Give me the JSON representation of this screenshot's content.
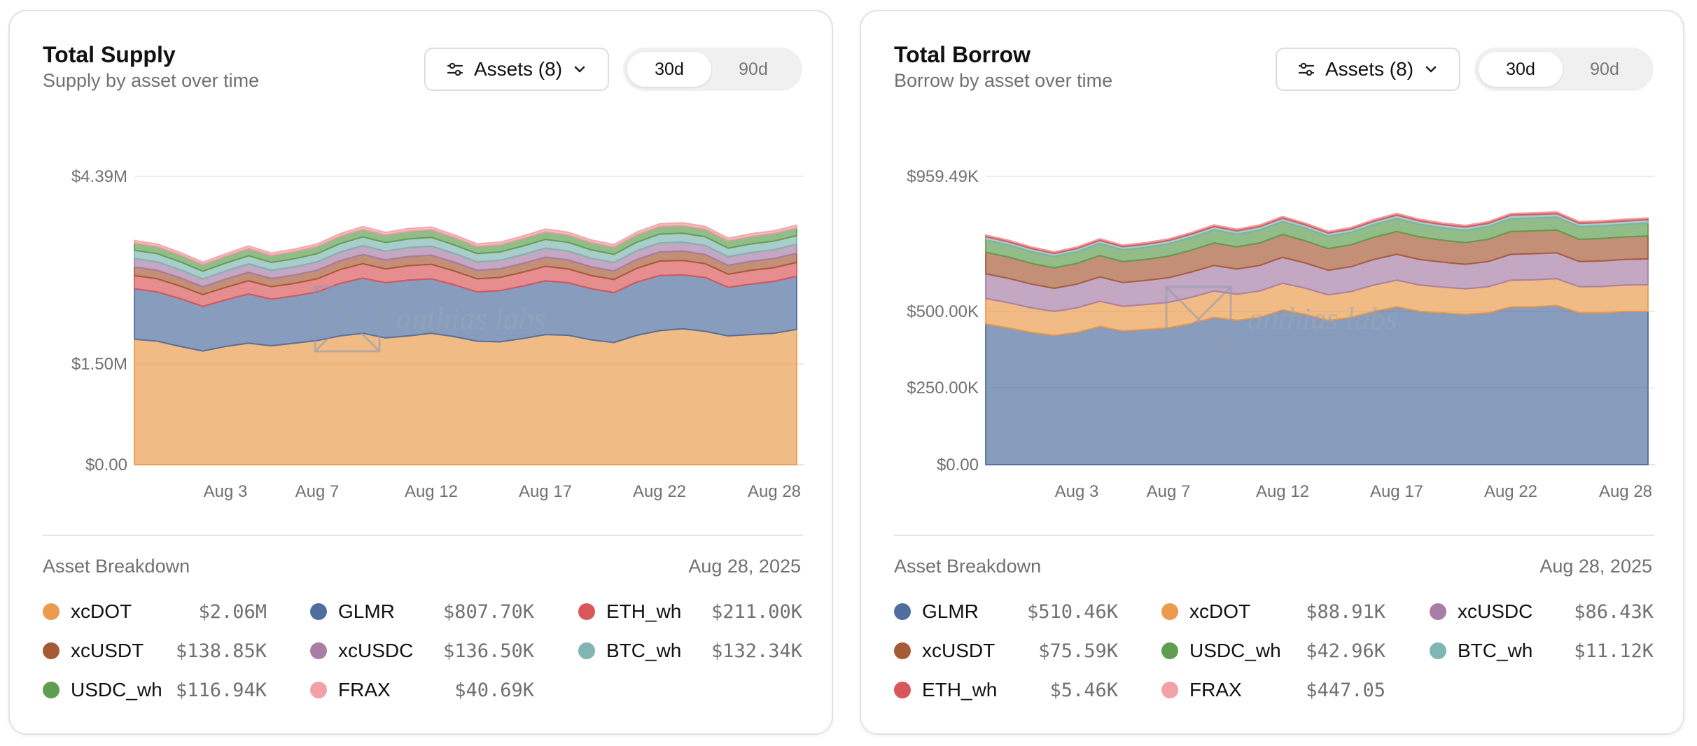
{
  "colors": {
    "GLMR": "#4f6d9e",
    "xcDOT": "#eb9b4d",
    "ETH_wh": "#d9575a",
    "xcUSDT": "#a65a36",
    "xcUSDC": "#a87ea6",
    "BTC_wh": "#7fb5b2",
    "USDC_wh": "#5f9e4f",
    "FRAX": "#f2a1a7"
  },
  "cards": [
    {
      "title": "Total Supply",
      "subtitle": "Supply by asset over time",
      "assets_button": "Assets (8)",
      "range": [
        "30d",
        "90d"
      ],
      "active_range": "30d",
      "watermark": "anthias labs",
      "breakdown_title": "Asset Breakdown",
      "breakdown_date": "Aug 28, 2025",
      "legend": [
        {
          "name": "xcDOT",
          "value": "$2.06M"
        },
        {
          "name": "GLMR",
          "value": "$807.70K"
        },
        {
          "name": "ETH_wh",
          "value": "$211.00K"
        },
        {
          "name": "xcUSDT",
          "value": "$138.85K"
        },
        {
          "name": "xcUSDC",
          "value": "$136.50K"
        },
        {
          "name": "BTC_wh",
          "value": "$132.34K"
        },
        {
          "name": "USDC_wh",
          "value": "$116.94K"
        },
        {
          "name": "FRAX",
          "value": "$40.69K"
        }
      ]
    },
    {
      "title": "Total Borrow",
      "subtitle": "Borrow by asset over time",
      "assets_button": "Assets (8)",
      "range": [
        "30d",
        "90d"
      ],
      "active_range": "30d",
      "watermark": "anthias labs",
      "breakdown_title": "Asset Breakdown",
      "breakdown_date": "Aug 28, 2025",
      "legend": [
        {
          "name": "GLMR",
          "value": "$510.46K"
        },
        {
          "name": "xcDOT",
          "value": "$88.91K"
        },
        {
          "name": "xcUSDC",
          "value": "$86.43K"
        },
        {
          "name": "xcUSDT",
          "value": "$75.59K"
        },
        {
          "name": "USDC_wh",
          "value": "$42.96K"
        },
        {
          "name": "BTC_wh",
          "value": "$11.12K"
        },
        {
          "name": "ETH_wh",
          "value": "$5.46K"
        },
        {
          "name": "FRAX",
          "value": "$447.05"
        }
      ]
    }
  ],
  "chart_data": [
    {
      "type": "area",
      "stacked": true,
      "title": "Total Supply",
      "x": [
        "Jul 30",
        "Jul 31",
        "Aug 1",
        "Aug 2",
        "Aug 3",
        "Aug 4",
        "Aug 5",
        "Aug 6",
        "Aug 7",
        "Aug 8",
        "Aug 9",
        "Aug 10",
        "Aug 11",
        "Aug 12",
        "Aug 13",
        "Aug 14",
        "Aug 15",
        "Aug 16",
        "Aug 17",
        "Aug 18",
        "Aug 19",
        "Aug 20",
        "Aug 21",
        "Aug 22",
        "Aug 23",
        "Aug 24",
        "Aug 25",
        "Aug 26",
        "Aug 27",
        "Aug 28"
      ],
      "x_tick_labels": [
        "Aug 3",
        "Aug 7",
        "Aug 12",
        "Aug 17",
        "Aug 22",
        "Aug 28"
      ],
      "y_tick_labels": [
        "$4.39M",
        "$1.50M",
        "$0.00"
      ],
      "y_tick_values": [
        4390000,
        1500000,
        0
      ],
      "ylim": [
        0,
        4390000
      ],
      "series": [
        {
          "name": "xcDOT",
          "values": [
            1.91,
            1.88,
            1.8,
            1.73,
            1.8,
            1.85,
            1.81,
            1.85,
            1.89,
            1.96,
            2.0,
            1.93,
            1.96,
            2.0,
            1.95,
            1.88,
            1.87,
            1.92,
            1.98,
            1.97,
            1.9,
            1.86,
            1.97,
            2.04,
            2.07,
            2.03,
            1.96,
            1.98,
            2.0,
            2.06
          ]
        },
        {
          "name": "GLMR",
          "values": [
            0.77,
            0.75,
            0.73,
            0.68,
            0.71,
            0.75,
            0.71,
            0.72,
            0.74,
            0.8,
            0.84,
            0.84,
            0.85,
            0.83,
            0.79,
            0.75,
            0.78,
            0.8,
            0.82,
            0.8,
            0.78,
            0.76,
            0.81,
            0.84,
            0.82,
            0.82,
            0.74,
            0.77,
            0.79,
            0.81
          ]
        },
        {
          "name": "ETH_wh",
          "values": [
            0.2,
            0.2,
            0.19,
            0.18,
            0.19,
            0.2,
            0.19,
            0.19,
            0.2,
            0.21,
            0.22,
            0.21,
            0.22,
            0.22,
            0.21,
            0.2,
            0.2,
            0.21,
            0.22,
            0.21,
            0.2,
            0.2,
            0.21,
            0.22,
            0.22,
            0.21,
            0.2,
            0.21,
            0.21,
            0.21
          ]
        },
        {
          "name": "xcUSDT",
          "values": [
            0.13,
            0.13,
            0.125,
            0.12,
            0.125,
            0.13,
            0.125,
            0.128,
            0.13,
            0.135,
            0.14,
            0.138,
            0.14,
            0.14,
            0.135,
            0.13,
            0.132,
            0.135,
            0.14,
            0.138,
            0.133,
            0.13,
            0.136,
            0.14,
            0.142,
            0.14,
            0.135,
            0.137,
            0.138,
            0.139
          ]
        },
        {
          "name": "xcUSDC",
          "values": [
            0.13,
            0.128,
            0.124,
            0.12,
            0.124,
            0.128,
            0.124,
            0.126,
            0.128,
            0.132,
            0.136,
            0.134,
            0.136,
            0.137,
            0.133,
            0.129,
            0.13,
            0.133,
            0.137,
            0.135,
            0.131,
            0.128,
            0.133,
            0.137,
            0.138,
            0.137,
            0.132,
            0.134,
            0.135,
            0.137
          ]
        },
        {
          "name": "BTC_wh",
          "values": [
            0.125,
            0.124,
            0.12,
            0.116,
            0.12,
            0.124,
            0.12,
            0.122,
            0.124,
            0.128,
            0.132,
            0.13,
            0.132,
            0.133,
            0.129,
            0.125,
            0.126,
            0.129,
            0.133,
            0.131,
            0.127,
            0.124,
            0.129,
            0.133,
            0.134,
            0.133,
            0.128,
            0.13,
            0.131,
            0.132
          ]
        },
        {
          "name": "USDC_wh",
          "values": [
            0.11,
            0.109,
            0.106,
            0.102,
            0.106,
            0.109,
            0.106,
            0.108,
            0.11,
            0.113,
            0.116,
            0.115,
            0.117,
            0.117,
            0.114,
            0.11,
            0.111,
            0.114,
            0.117,
            0.115,
            0.112,
            0.11,
            0.114,
            0.117,
            0.118,
            0.117,
            0.113,
            0.115,
            0.116,
            0.117
          ]
        },
        {
          "name": "FRAX",
          "values": [
            0.038,
            0.038,
            0.037,
            0.036,
            0.037,
            0.038,
            0.037,
            0.038,
            0.038,
            0.039,
            0.041,
            0.04,
            0.041,
            0.041,
            0.04,
            0.039,
            0.039,
            0.04,
            0.041,
            0.04,
            0.039,
            0.039,
            0.04,
            0.041,
            0.041,
            0.041,
            0.04,
            0.04,
            0.04,
            0.041
          ]
        }
      ],
      "series_units": "millions USD"
    },
    {
      "type": "area",
      "stacked": true,
      "title": "Total Borrow",
      "x": [
        "Jul 30",
        "Jul 31",
        "Aug 1",
        "Aug 2",
        "Aug 3",
        "Aug 4",
        "Aug 5",
        "Aug 6",
        "Aug 7",
        "Aug 8",
        "Aug 9",
        "Aug 10",
        "Aug 11",
        "Aug 12",
        "Aug 13",
        "Aug 14",
        "Aug 15",
        "Aug 16",
        "Aug 17",
        "Aug 18",
        "Aug 19",
        "Aug 20",
        "Aug 21",
        "Aug 22",
        "Aug 23",
        "Aug 24",
        "Aug 25",
        "Aug 26",
        "Aug 27",
        "Aug 28"
      ],
      "x_tick_labels": [
        "Aug 3",
        "Aug 7",
        "Aug 12",
        "Aug 17",
        "Aug 22",
        "Aug 28"
      ],
      "y_tick_labels": [
        "$959.49K",
        "$500.00K",
        "$250.00K",
        "$0.00"
      ],
      "y_tick_values": [
        959490,
        500000,
        250000,
        0
      ],
      "ylim": [
        0,
        959490
      ],
      "series": [
        {
          "name": "GLMR",
          "values": [
            468,
            455,
            440,
            430,
            440,
            460,
            445,
            450,
            455,
            470,
            490,
            480,
            490,
            515,
            500,
            480,
            490,
            510,
            525,
            510,
            505,
            500,
            505,
            525,
            525,
            530,
            505,
            505,
            510,
            510
          ]
        },
        {
          "name": "xcDOT",
          "values": [
            85,
            84,
            82,
            80,
            82,
            84,
            82,
            83,
            85,
            87,
            88,
            87,
            88,
            89,
            87,
            85,
            86,
            88,
            89,
            88,
            86,
            85,
            87,
            89,
            90,
            89,
            87,
            88,
            88,
            89
          ]
        },
        {
          "name": "xcUSDC",
          "values": [
            82,
            81,
            79,
            77,
            79,
            81,
            79,
            80,
            82,
            84,
            85,
            84,
            85,
            86,
            84,
            82,
            83,
            85,
            86,
            85,
            83,
            82,
            84,
            86,
            87,
            86,
            84,
            85,
            85,
            86
          ]
        },
        {
          "name": "xcUSDT",
          "values": [
            72,
            71,
            69,
            68,
            69,
            71,
            70,
            70,
            72,
            73,
            75,
            74,
            75,
            76,
            74,
            72,
            73,
            74,
            76,
            75,
            73,
            72,
            74,
            76,
            76,
            76,
            74,
            75,
            75,
            76
          ]
        },
        {
          "name": "USDC_wh",
          "values": [
            41,
            40,
            39,
            38,
            39,
            40,
            39,
            40,
            41,
            42,
            43,
            42,
            43,
            43,
            42,
            41,
            41,
            42,
            43,
            42,
            41,
            41,
            42,
            43,
            43,
            43,
            42,
            42,
            42,
            43
          ]
        },
        {
          "name": "BTC_wh",
          "values": [
            10.6,
            10.5,
            10.2,
            9.9,
            10.2,
            10.5,
            10.2,
            10.4,
            10.6,
            10.9,
            11.1,
            11.0,
            11.1,
            11.2,
            10.9,
            10.6,
            10.7,
            10.9,
            11.2,
            11.0,
            10.8,
            10.6,
            10.9,
            11.2,
            11.2,
            11.2,
            10.9,
            11.0,
            11.1,
            11.1
          ]
        },
        {
          "name": "ETH_wh",
          "values": [
            5.2,
            5.1,
            5.0,
            4.9,
            5.0,
            5.1,
            5.0,
            5.1,
            5.2,
            5.3,
            5.5,
            5.4,
            5.5,
            5.5,
            5.4,
            5.2,
            5.3,
            5.4,
            5.5,
            5.4,
            5.3,
            5.2,
            5.4,
            5.5,
            5.5,
            5.5,
            5.4,
            5.4,
            5.4,
            5.5
          ]
        },
        {
          "name": "FRAX",
          "values": [
            0.43,
            0.43,
            0.42,
            0.41,
            0.42,
            0.43,
            0.42,
            0.42,
            0.43,
            0.44,
            0.45,
            0.44,
            0.45,
            0.45,
            0.44,
            0.43,
            0.44,
            0.44,
            0.45,
            0.45,
            0.44,
            0.43,
            0.44,
            0.45,
            0.45,
            0.45,
            0.44,
            0.44,
            0.45,
            0.45
          ]
        }
      ],
      "series_units": "thousands USD"
    }
  ]
}
